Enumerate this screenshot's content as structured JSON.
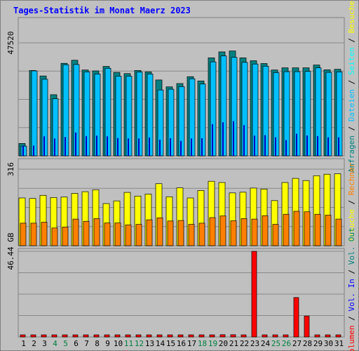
{
  "chart_data": [
    {
      "type": "bar",
      "title": "Tages-Statistik im Monat Maerz 2023",
      "ytick": "47520",
      "ymax": 47520,
      "legend": [
        "Anfragen",
        "/",
        "Dateien",
        "/",
        "Seiten",
        "/",
        "Besuche"
      ],
      "categories": [
        "1",
        "2",
        "3",
        "4",
        "5",
        "6",
        "7",
        "8",
        "9",
        "10",
        "11",
        "12",
        "13",
        "14",
        "15",
        "16",
        "17",
        "18",
        "19",
        "20",
        "21",
        "22",
        "23",
        "24",
        "25",
        "26",
        "27",
        "28",
        "29",
        "30",
        "31"
      ],
      "weekend_days": [
        "4",
        "5",
        "11",
        "12",
        "18",
        "19",
        "25",
        "26"
      ],
      "series": [
        {
          "name": "Anfragen",
          "values": [
            5200,
            35900,
            33600,
            25700,
            38900,
            40200,
            36100,
            35700,
            37600,
            35100,
            34600,
            35900,
            35300,
            31900,
            29000,
            30400,
            33300,
            31500,
            41200,
            43700,
            44100,
            41200,
            40000,
            38800,
            36100,
            37000,
            37000,
            37000,
            38200,
            36200,
            36400
          ]
        },
        {
          "name": "Dateien",
          "values": [
            4100,
            35700,
            32200,
            24000,
            38300,
            38400,
            35300,
            34400,
            36800,
            33500,
            33500,
            35200,
            34400,
            27700,
            28000,
            29100,
            32400,
            30200,
            39500,
            42000,
            41400,
            39300,
            38600,
            37700,
            35000,
            35400,
            35400,
            35500,
            37000,
            35100,
            35300
          ]
        },
        {
          "name": "Seiten",
          "values": [
            4200,
            4300,
            8200,
            7300,
            7900,
            9800,
            8300,
            8500,
            8200,
            7500,
            7300,
            7300,
            7700,
            6800,
            7400,
            6300,
            7300,
            7400,
            13300,
            14100,
            14600,
            12900,
            8500,
            8700,
            7800,
            6600,
            9300,
            8600,
            8300,
            7800,
            7800
          ]
        }
      ]
    },
    {
      "type": "bar",
      "ytick": "316",
      "ymax": 316,
      "legend": [
        "Besuche",
        "/",
        "Rechner"
      ],
      "categories": [
        "1",
        "2",
        "3",
        "4",
        "5",
        "6",
        "7",
        "8",
        "9",
        "10",
        "11",
        "12",
        "13",
        "14",
        "15",
        "16",
        "17",
        "18",
        "19",
        "20",
        "21",
        "22",
        "23",
        "24",
        "25",
        "26",
        "27",
        "28",
        "29",
        "30",
        "31"
      ],
      "series": [
        {
          "name": "Besuche",
          "values": [
            197,
            195,
            208,
            199,
            201,
            216,
            223,
            231,
            174,
            185,
            220,
            205,
            213,
            256,
            202,
            239,
            197,
            228,
            266,
            261,
            218,
            221,
            238,
            234,
            186,
            261,
            278,
            269,
            289,
            295,
            297
          ]
        },
        {
          "name": "Rechner",
          "values": [
            93,
            93,
            97,
            73,
            77,
            110,
            101,
            112,
            94,
            94,
            86,
            88,
            107,
            115,
            102,
            104,
            88,
            93,
            116,
            123,
            103,
            112,
            110,
            124,
            88,
            130,
            142,
            140,
            130,
            126,
            110
          ]
        }
      ]
    },
    {
      "type": "bar",
      "ytick": "46.44 GB",
      "ymax": 46.44,
      "legend": [
        "Volumen",
        "/",
        "Vol. In",
        "/",
        "Vol. Out"
      ],
      "categories": [
        "1",
        "2",
        "3",
        "4",
        "5",
        "6",
        "7",
        "8",
        "9",
        "10",
        "11",
        "12",
        "13",
        "14",
        "15",
        "16",
        "17",
        "18",
        "19",
        "20",
        "21",
        "22",
        "23",
        "24",
        "25",
        "26",
        "27",
        "28",
        "29",
        "30",
        "31"
      ],
      "series": [
        {
          "name": "Volumen",
          "values": [
            0.3,
            0.3,
            0.3,
            0.3,
            0.3,
            0.8,
            0.3,
            0.3,
            0.3,
            0.3,
            0.3,
            0.3,
            0.3,
            0.8,
            0.3,
            0.3,
            0.3,
            0.3,
            0.8,
            1.2,
            1.2,
            0.8,
            46.44,
            0.8,
            0.8,
            0.8,
            21.4,
            11.4,
            0.3,
            0.3,
            0.8
          ]
        }
      ]
    }
  ],
  "colors": {
    "title": "#0000ff",
    "background": "#c0c0c0",
    "anfragen": "#008080",
    "dateien": "#00c0ff",
    "seiten": "#00ffff",
    "besuche": "#ffff00",
    "rechner": "#ff8000",
    "volumen": "#ff0000",
    "vol_in": "#0000ff",
    "vol_out": "#008080",
    "weekend": "#008040"
  }
}
